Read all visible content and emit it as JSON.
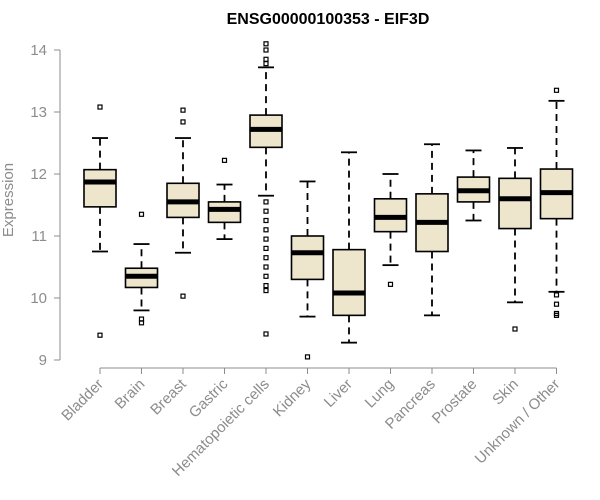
{
  "chart_data": {
    "type": "box",
    "title": "ENSG00000100353 - EIF3D",
    "xlabel": "",
    "ylabel": "Expression",
    "ylim": [
      9,
      14
    ],
    "yticks": [
      9,
      10,
      11,
      12,
      13,
      14
    ],
    "categories": [
      "Bladder",
      "Brain",
      "Breast",
      "Gastric",
      "Hematopoietic cells",
      "Kidney",
      "Liver",
      "Lung",
      "Pancreas",
      "Prostate",
      "Skin",
      "Unknown / Other"
    ],
    "boxes": [
      {
        "category": "Bladder",
        "min": 10.75,
        "q1": 11.47,
        "median": 11.87,
        "q3": 12.07,
        "max": 12.58,
        "outliers": [
          13.08,
          9.4
        ]
      },
      {
        "category": "Brain",
        "min": 9.8,
        "q1": 10.17,
        "median": 10.35,
        "q3": 10.48,
        "max": 10.87,
        "outliers": [
          11.35,
          9.66,
          9.6
        ]
      },
      {
        "category": "Breast",
        "min": 10.73,
        "q1": 11.3,
        "median": 11.55,
        "q3": 11.85,
        "max": 12.58,
        "outliers": [
          13.03,
          12.84,
          10.03
        ]
      },
      {
        "category": "Gastric",
        "min": 10.95,
        "q1": 11.22,
        "median": 11.43,
        "q3": 11.55,
        "max": 11.83,
        "outliers": [
          12.22
        ]
      },
      {
        "category": "Hematopoietic cells",
        "min": 11.65,
        "q1": 12.43,
        "median": 12.72,
        "q3": 12.95,
        "max": 13.72,
        "outliers": [
          14.1,
          14.0,
          13.85,
          13.78,
          11.55,
          11.4,
          11.25,
          11.1,
          10.95,
          10.8,
          10.65,
          10.5,
          10.35,
          10.2,
          10.12,
          9.42
        ]
      },
      {
        "category": "Kidney",
        "min": 9.7,
        "q1": 10.3,
        "median": 10.73,
        "q3": 11.0,
        "max": 11.88,
        "outliers": [
          9.05
        ]
      },
      {
        "category": "Liver",
        "min": 9.28,
        "q1": 9.72,
        "median": 10.08,
        "q3": 10.78,
        "max": 12.35,
        "outliers": []
      },
      {
        "category": "Lung",
        "min": 10.53,
        "q1": 11.07,
        "median": 11.3,
        "q3": 11.6,
        "max": 12.0,
        "outliers": [
          10.22
        ]
      },
      {
        "category": "Pancreas",
        "min": 9.72,
        "q1": 10.75,
        "median": 11.22,
        "q3": 11.68,
        "max": 12.48,
        "outliers": []
      },
      {
        "category": "Prostate",
        "min": 11.25,
        "q1": 11.55,
        "median": 11.73,
        "q3": 11.95,
        "max": 12.38,
        "outliers": []
      },
      {
        "category": "Skin",
        "min": 9.93,
        "q1": 11.12,
        "median": 11.6,
        "q3": 11.93,
        "max": 12.42,
        "outliers": [
          9.5
        ]
      },
      {
        "category": "Unknown / Other",
        "min": 10.1,
        "q1": 11.28,
        "median": 11.7,
        "q3": 12.08,
        "max": 13.18,
        "outliers": [
          13.35,
          10.05,
          9.9,
          9.75,
          9.72
        ]
      }
    ],
    "colors": {
      "box_fill": "#ede6cd",
      "axis": "#8c8c8c",
      "stroke": "#000000"
    },
    "grid": false,
    "legend": "none"
  }
}
